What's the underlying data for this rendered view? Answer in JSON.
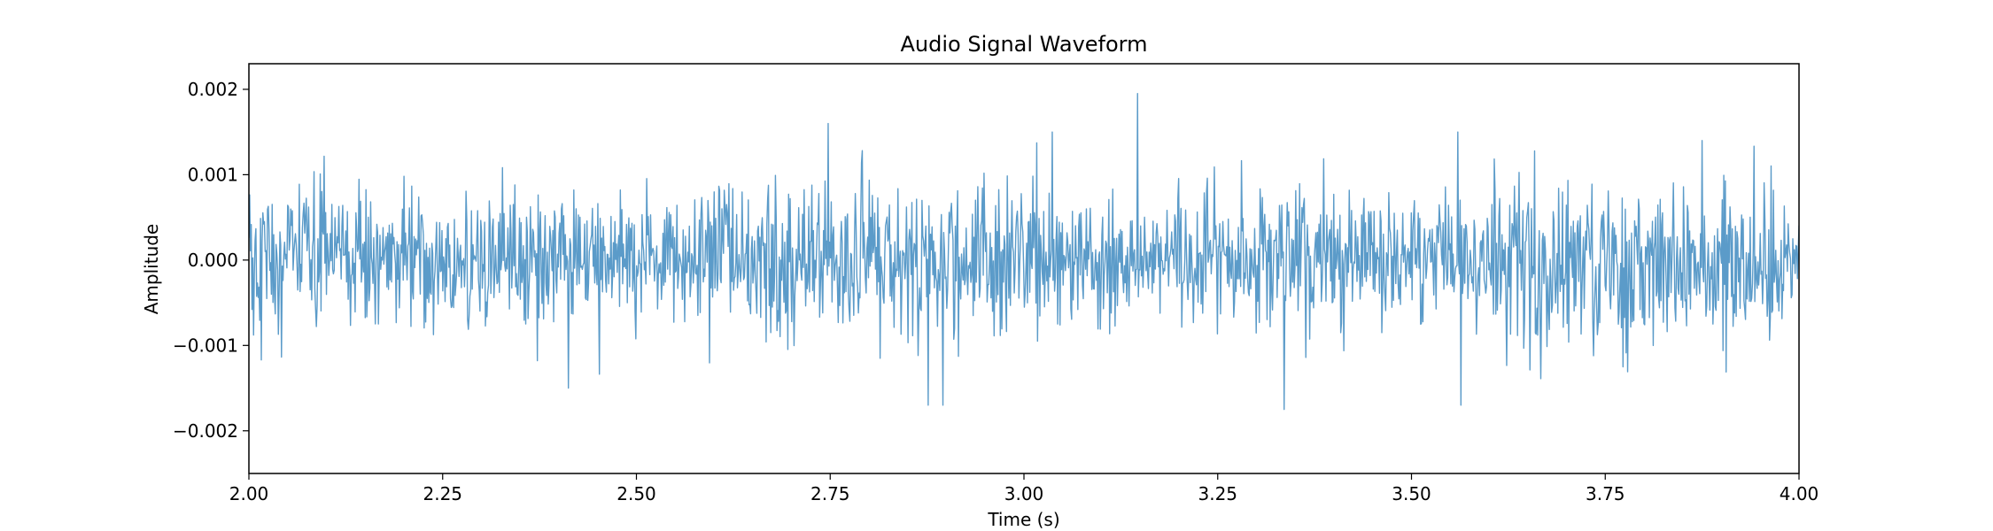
{
  "chart_data": {
    "type": "line",
    "title": "Audio Signal Waveform",
    "xlabel": "Time (s)",
    "ylabel": "Amplitude",
    "xlim": [
      2.0,
      4.0
    ],
    "ylim": [
      -0.0025,
      0.0023
    ],
    "x_ticks": [
      {
        "value": 2.0,
        "label": "2.00"
      },
      {
        "value": 2.25,
        "label": "2.25"
      },
      {
        "value": 2.5,
        "label": "2.50"
      },
      {
        "value": 2.75,
        "label": "2.75"
      },
      {
        "value": 3.0,
        "label": "3.00"
      },
      {
        "value": 3.25,
        "label": "3.25"
      },
      {
        "value": 3.5,
        "label": "3.50"
      },
      {
        "value": 3.75,
        "label": "3.75"
      },
      {
        "value": 4.0,
        "label": "4.00"
      }
    ],
    "y_ticks": [
      {
        "value": 0.002,
        "label": "0.002"
      },
      {
        "value": 0.001,
        "label": "0.001"
      },
      {
        "value": 0.0,
        "label": "0.000"
      },
      {
        "value": -0.001,
        "label": "−0.001"
      },
      {
        "value": -0.002,
        "label": "−0.002"
      }
    ],
    "grid": false,
    "series": [
      {
        "color": "#5b9bc9",
        "x_start": 2.0,
        "x_end": 4.0,
        "samples": 2000,
        "noise_std": 0.00042,
        "notable_points": [
          {
            "x": 3.147,
            "y": 0.00195
          },
          {
            "x": 3.336,
            "y": -0.00175
          },
          {
            "x": 2.412,
            "y": -0.0015
          },
          {
            "x": 2.876,
            "y": -0.0017
          },
          {
            "x": 2.895,
            "y": -0.0017
          },
          {
            "x": 3.564,
            "y": -0.0017
          },
          {
            "x": 3.037,
            "y": 0.0015
          },
          {
            "x": 3.56,
            "y": 0.0015
          },
          {
            "x": 3.875,
            "y": 0.0014
          }
        ]
      }
    ]
  }
}
